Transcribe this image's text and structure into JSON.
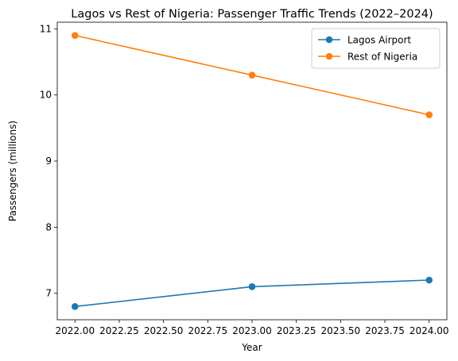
{
  "chart_data": {
    "type": "line",
    "title": "Lagos vs Rest of Nigeria: Passenger Traffic Trends (2022–2024)",
    "xlabel": "Year",
    "ylabel": "Passengers (millions)",
    "x": [
      2022,
      2023,
      2024
    ],
    "xlim": [
      2021.9,
      2024.1
    ],
    "ylim": [
      6.6,
      11.1
    ],
    "x_ticks": [
      2022.0,
      2022.25,
      2022.5,
      2022.75,
      2023.0,
      2023.25,
      2023.5,
      2023.75,
      2024.0
    ],
    "x_tick_labels": [
      "2022.00",
      "2022.25",
      "2022.50",
      "2022.75",
      "2023.00",
      "2023.25",
      "2023.50",
      "2023.75",
      "2024.00"
    ],
    "y_ticks": [
      7,
      8,
      9,
      10,
      11
    ],
    "y_tick_labels": [
      "7",
      "8",
      "9",
      "10",
      "11"
    ],
    "grid": false,
    "legend_position": "top-right",
    "series": [
      {
        "name": "Lagos Airport",
        "values": [
          6.8,
          7.1,
          7.2
        ],
        "color": "#1f77b4",
        "marker": "circle"
      },
      {
        "name": "Rest of Nigeria",
        "values": [
          10.9,
          10.3,
          9.7
        ],
        "color": "#ff7f0e",
        "marker": "circle"
      }
    ]
  }
}
